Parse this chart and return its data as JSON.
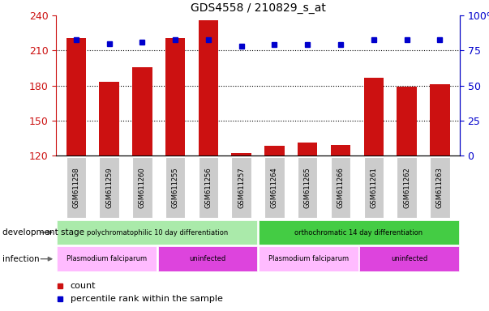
{
  "title": "GDS4558 / 210829_s_at",
  "samples": [
    "GSM611258",
    "GSM611259",
    "GSM611260",
    "GSM611255",
    "GSM611256",
    "GSM611257",
    "GSM611264",
    "GSM611265",
    "GSM611266",
    "GSM611261",
    "GSM611262",
    "GSM611263"
  ],
  "counts": [
    221,
    183,
    196,
    221,
    236,
    122,
    128,
    131,
    129,
    187,
    179,
    181
  ],
  "percentiles": [
    83,
    80,
    81,
    83,
    83,
    78,
    79,
    79,
    79,
    83,
    83,
    83
  ],
  "ylim_left": [
    120,
    240
  ],
  "ylim_right": [
    0,
    100
  ],
  "yticks_left": [
    120,
    150,
    180,
    210,
    240
  ],
  "yticks_right": [
    0,
    25,
    50,
    75,
    100
  ],
  "bar_color": "#cc1111",
  "dot_color": "#0000cc",
  "background_color": "#ffffff",
  "dev_stage_groups": [
    {
      "label": "polychromatophilic 10 day differentiation",
      "start": 0,
      "end": 5,
      "color": "#aaeaaa"
    },
    {
      "label": "orthochromatic 14 day differentiation",
      "start": 6,
      "end": 11,
      "color": "#44cc44"
    }
  ],
  "infection_groups": [
    {
      "label": "Plasmodium falciparum",
      "start": 0,
      "end": 2,
      "color": "#ffbbff"
    },
    {
      "label": "uninfected",
      "start": 3,
      "end": 5,
      "color": "#dd44dd"
    },
    {
      "label": "Plasmodium falciparum",
      "start": 6,
      "end": 8,
      "color": "#ffbbff"
    },
    {
      "label": "uninfected",
      "start": 9,
      "end": 11,
      "color": "#dd44dd"
    }
  ],
  "legend_items": [
    {
      "label": "count",
      "color": "#cc1111"
    },
    {
      "label": "percentile rank within the sample",
      "color": "#0000cc"
    }
  ],
  "fig_width": 6.03,
  "fig_height": 3.84,
  "dpi": 100
}
